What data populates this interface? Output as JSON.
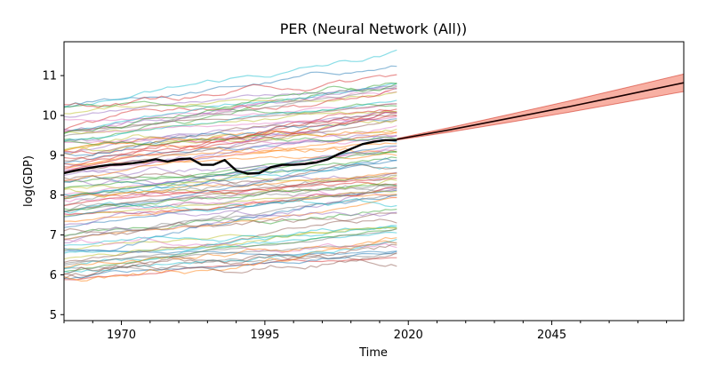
{
  "chart_data": {
    "type": "line",
    "title": "PER (Neural Network (All))",
    "xlabel": "Time",
    "ylabel": "log(GDP)",
    "xlim": [
      1960,
      2068
    ],
    "ylim": [
      4.85,
      11.85
    ],
    "x_ticks": [
      1970,
      1995,
      2020,
      2045
    ],
    "x_tick_labels": [
      "1970",
      "1995",
      "2020",
      "2045"
    ],
    "y_ticks": [
      5,
      6,
      7,
      8,
      9,
      10,
      11
    ],
    "y_tick_labels": [
      "5",
      "6",
      "7",
      "8",
      "9",
      "10",
      "11"
    ],
    "grid": false,
    "legend": "none",
    "colors": {
      "highlight": "#000000",
      "forecast_line": "#cc1a0a",
      "forecast_band": "#f47c66",
      "palette": [
        "#1f77b4",
        "#ff7f0e",
        "#2ca02c",
        "#d62728",
        "#9467bd",
        "#8c564b",
        "#e377c2",
        "#7f7f7f",
        "#bcbd22",
        "#17becf"
      ]
    },
    "background_countries": {
      "count": 96,
      "x_start": 1960,
      "x_end": 2018,
      "start_level_range": [
        5.8,
        10.3
      ],
      "end_level_range": [
        6.5,
        11.35
      ]
    },
    "highlight_series": {
      "name": "PER",
      "x": [
        1960,
        1962,
        1964,
        1966,
        1968,
        1970,
        1972,
        1974,
        1976,
        1978,
        1980,
        1982,
        1984,
        1986,
        1988,
        1990,
        1992,
        1994,
        1996,
        1998,
        2000,
        2002,
        2004,
        2006,
        2008,
        2010,
        2012,
        2014,
        2016,
        2018
      ],
      "y": [
        8.55,
        8.62,
        8.67,
        8.72,
        8.76,
        8.77,
        8.8,
        8.84,
        8.9,
        8.84,
        8.9,
        8.92,
        8.76,
        8.76,
        8.88,
        8.62,
        8.54,
        8.55,
        8.7,
        8.76,
        8.76,
        8.78,
        8.82,
        8.9,
        9.04,
        9.16,
        9.28,
        9.34,
        9.38,
        9.38
      ]
    },
    "forecast": {
      "x": [
        2018,
        2028,
        2038,
        2048,
        2058,
        2068
      ],
      "median": [
        9.4,
        9.66,
        9.94,
        10.22,
        10.52,
        10.82
      ],
      "lower": [
        9.38,
        9.6,
        9.84,
        10.08,
        10.34,
        10.6
      ],
      "upper": [
        9.42,
        9.72,
        10.04,
        10.36,
        10.7,
        11.04
      ]
    }
  }
}
